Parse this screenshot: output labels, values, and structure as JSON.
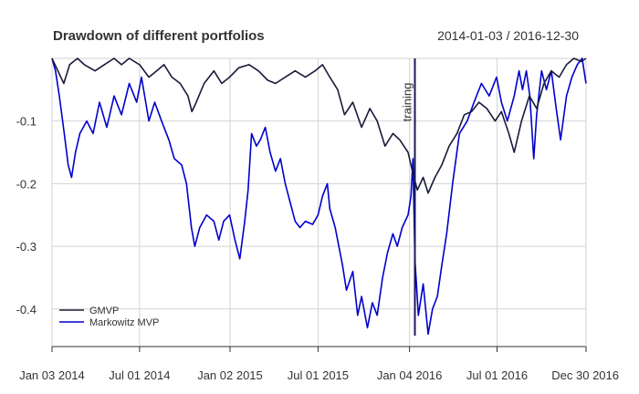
{
  "chart_data": {
    "type": "line",
    "title": "Drawdown of different portfolios",
    "date_range": "2014-01-03 / 2016-12-30",
    "xlabel": "",
    "ylabel": "",
    "x_ticks": [
      "Jan 03 2014",
      "Jul 01 2014",
      "Jan 02 2015",
      "Jul 01 2015",
      "Jan 04 2016",
      "Jul 01 2016",
      "Dec 30 2016"
    ],
    "y_ticks": [
      "-0.1",
      "-0.2",
      "-0.3",
      "-0.4"
    ],
    "y_tick_values": [
      -0.1,
      -0.2,
      -0.3,
      -0.4
    ],
    "xlim": [
      "2014-01-03",
      "2016-12-30"
    ],
    "ylim": [
      -0.46,
      0.0
    ],
    "grid": true,
    "legend": "bottom-left",
    "event": {
      "label": "training",
      "date": "2016-01-15"
    },
    "series": [
      {
        "name": "GMVP",
        "color": "#1a1a3a",
        "points": [
          [
            "2014-01-03",
            0.0
          ],
          [
            "2014-01-15",
            -0.02
          ],
          [
            "2014-01-27",
            -0.04
          ],
          [
            "2014-02-08",
            -0.01
          ],
          [
            "2014-02-24",
            0.0
          ],
          [
            "2014-03-10",
            -0.01
          ],
          [
            "2014-04-01",
            -0.02
          ],
          [
            "2014-04-20",
            -0.01
          ],
          [
            "2014-05-10",
            0.0
          ],
          [
            "2014-05-25",
            -0.01
          ],
          [
            "2014-06-10",
            0.0
          ],
          [
            "2014-07-01",
            -0.01
          ],
          [
            "2014-07-20",
            -0.03
          ],
          [
            "2014-08-05",
            -0.02
          ],
          [
            "2014-08-20",
            -0.01
          ],
          [
            "2014-09-05",
            -0.03
          ],
          [
            "2014-09-22",
            -0.04
          ],
          [
            "2014-10-08",
            -0.06
          ],
          [
            "2014-10-16",
            -0.085
          ],
          [
            "2014-10-25",
            -0.07
          ],
          [
            "2014-11-10",
            -0.04
          ],
          [
            "2014-11-30",
            -0.02
          ],
          [
            "2014-12-16",
            -0.04
          ],
          [
            "2015-01-01",
            -0.03
          ],
          [
            "2015-01-20",
            -0.015
          ],
          [
            "2015-02-10",
            -0.01
          ],
          [
            "2015-03-01",
            -0.02
          ],
          [
            "2015-03-20",
            -0.035
          ],
          [
            "2015-04-05",
            -0.04
          ],
          [
            "2015-04-25",
            -0.03
          ],
          [
            "2015-05-15",
            -0.02
          ],
          [
            "2015-06-05",
            -0.03
          ],
          [
            "2015-06-25",
            -0.02
          ],
          [
            "2015-07-10",
            -0.01
          ],
          [
            "2015-07-25",
            -0.03
          ],
          [
            "2015-08-10",
            -0.05
          ],
          [
            "2015-08-24",
            -0.09
          ],
          [
            "2015-09-10",
            -0.07
          ],
          [
            "2015-09-28",
            -0.11
          ],
          [
            "2015-10-15",
            -0.08
          ],
          [
            "2015-10-30",
            -0.1
          ],
          [
            "2015-11-15",
            -0.14
          ],
          [
            "2015-12-01",
            -0.12
          ],
          [
            "2015-12-15",
            -0.13
          ],
          [
            "2016-01-01",
            -0.15
          ],
          [
            "2016-01-10",
            -0.18
          ],
          [
            "2016-01-20",
            -0.21
          ],
          [
            "2016-02-01",
            -0.19
          ],
          [
            "2016-02-11",
            -0.215
          ],
          [
            "2016-02-25",
            -0.19
          ],
          [
            "2016-03-10",
            -0.17
          ],
          [
            "2016-03-25",
            -0.14
          ],
          [
            "2016-04-10",
            -0.12
          ],
          [
            "2016-04-25",
            -0.09
          ],
          [
            "2016-05-10",
            -0.085
          ],
          [
            "2016-05-25",
            -0.07
          ],
          [
            "2016-06-10",
            -0.08
          ],
          [
            "2016-06-27",
            -0.1
          ],
          [
            "2016-07-10",
            -0.085
          ],
          [
            "2016-07-25",
            -0.12
          ],
          [
            "2016-08-05",
            -0.15
          ],
          [
            "2016-08-20",
            -0.1
          ],
          [
            "2016-09-05",
            -0.06
          ],
          [
            "2016-09-20",
            -0.08
          ],
          [
            "2016-10-05",
            -0.04
          ],
          [
            "2016-10-20",
            -0.02
          ],
          [
            "2016-11-05",
            -0.03
          ],
          [
            "2016-11-20",
            -0.01
          ],
          [
            "2016-12-05",
            0.0
          ],
          [
            "2016-12-20",
            -0.005
          ],
          [
            "2016-12-30",
            0.0
          ]
        ]
      },
      {
        "name": "Markowitz MVP",
        "color": "#0000cc",
        "points": [
          [
            "2014-01-03",
            0.0
          ],
          [
            "2014-01-10",
            -0.02
          ],
          [
            "2014-01-18",
            -0.06
          ],
          [
            "2014-01-28",
            -0.12
          ],
          [
            "2014-02-05",
            -0.17
          ],
          [
            "2014-02-12",
            -0.19
          ],
          [
            "2014-02-20",
            -0.15
          ],
          [
            "2014-03-01",
            -0.12
          ],
          [
            "2014-03-15",
            -0.1
          ],
          [
            "2014-03-28",
            -0.12
          ],
          [
            "2014-04-10",
            -0.07
          ],
          [
            "2014-04-25",
            -0.11
          ],
          [
            "2014-05-10",
            -0.06
          ],
          [
            "2014-05-25",
            -0.09
          ],
          [
            "2014-06-10",
            -0.04
          ],
          [
            "2014-06-25",
            -0.07
          ],
          [
            "2014-07-05",
            -0.03
          ],
          [
            "2014-07-20",
            -0.1
          ],
          [
            "2014-08-01",
            -0.07
          ],
          [
            "2014-08-15",
            -0.1
          ],
          [
            "2014-08-30",
            -0.13
          ],
          [
            "2014-09-10",
            -0.16
          ],
          [
            "2014-09-25",
            -0.17
          ],
          [
            "2014-10-05",
            -0.2
          ],
          [
            "2014-10-15",
            -0.27
          ],
          [
            "2014-10-22",
            -0.3
          ],
          [
            "2014-11-01",
            -0.27
          ],
          [
            "2014-11-15",
            -0.25
          ],
          [
            "2014-11-30",
            -0.26
          ],
          [
            "2014-12-10",
            -0.29
          ],
          [
            "2014-12-20",
            -0.26
          ],
          [
            "2015-01-01",
            -0.25
          ],
          [
            "2015-01-12",
            -0.29
          ],
          [
            "2015-01-22",
            -0.32
          ],
          [
            "2015-02-01",
            -0.26
          ],
          [
            "2015-02-08",
            -0.21
          ],
          [
            "2015-02-15",
            -0.12
          ],
          [
            "2015-02-25",
            -0.14
          ],
          [
            "2015-03-05",
            -0.13
          ],
          [
            "2015-03-15",
            -0.11
          ],
          [
            "2015-03-25",
            -0.15
          ],
          [
            "2015-04-05",
            -0.18
          ],
          [
            "2015-04-15",
            -0.16
          ],
          [
            "2015-04-25",
            -0.2
          ],
          [
            "2015-05-05",
            -0.23
          ],
          [
            "2015-05-15",
            -0.26
          ],
          [
            "2015-05-25",
            -0.27
          ],
          [
            "2015-06-05",
            -0.26
          ],
          [
            "2015-06-20",
            -0.265
          ],
          [
            "2015-07-01",
            -0.25
          ],
          [
            "2015-07-10",
            -0.22
          ],
          [
            "2015-07-20",
            -0.2
          ],
          [
            "2015-07-25",
            -0.24
          ],
          [
            "2015-08-05",
            -0.27
          ],
          [
            "2015-08-20",
            -0.33
          ],
          [
            "2015-08-28",
            -0.37
          ],
          [
            "2015-09-10",
            -0.34
          ],
          [
            "2015-09-20",
            -0.41
          ],
          [
            "2015-09-28",
            -0.38
          ],
          [
            "2015-10-10",
            -0.43
          ],
          [
            "2015-10-20",
            -0.39
          ],
          [
            "2015-10-30",
            -0.41
          ],
          [
            "2015-11-10",
            -0.35
          ],
          [
            "2015-11-20",
            -0.31
          ],
          [
            "2015-12-01",
            -0.28
          ],
          [
            "2015-12-10",
            -0.3
          ],
          [
            "2015-12-20",
            -0.27
          ],
          [
            "2016-01-01",
            -0.25
          ],
          [
            "2016-01-07",
            -0.22
          ],
          [
            "2016-01-11",
            -0.16
          ],
          [
            "2016-01-15",
            -0.32
          ],
          [
            "2016-01-22",
            -0.41
          ],
          [
            "2016-02-01",
            -0.36
          ],
          [
            "2016-02-11",
            -0.44
          ],
          [
            "2016-02-20",
            -0.4
          ],
          [
            "2016-03-01",
            -0.38
          ],
          [
            "2016-03-10",
            -0.33
          ],
          [
            "2016-03-20",
            -0.28
          ],
          [
            "2016-04-01",
            -0.2
          ],
          [
            "2016-04-15",
            -0.12
          ],
          [
            "2016-05-01",
            -0.1
          ],
          [
            "2016-05-15",
            -0.07
          ],
          [
            "2016-05-30",
            -0.04
          ],
          [
            "2016-06-15",
            -0.06
          ],
          [
            "2016-06-30",
            -0.03
          ],
          [
            "2016-07-10",
            -0.07
          ],
          [
            "2016-07-22",
            -0.1
          ],
          [
            "2016-08-05",
            -0.06
          ],
          [
            "2016-08-15",
            -0.02
          ],
          [
            "2016-08-22",
            -0.05
          ],
          [
            "2016-08-30",
            -0.02
          ],
          [
            "2016-09-06",
            -0.06
          ],
          [
            "2016-09-14",
            -0.16
          ],
          [
            "2016-09-20",
            -0.09
          ],
          [
            "2016-09-30",
            -0.02
          ],
          [
            "2016-10-10",
            -0.05
          ],
          [
            "2016-10-20",
            -0.02
          ],
          [
            "2016-10-30",
            -0.08
          ],
          [
            "2016-11-08",
            -0.13
          ],
          [
            "2016-11-20",
            -0.06
          ],
          [
            "2016-12-01",
            -0.03
          ],
          [
            "2016-12-12",
            -0.01
          ],
          [
            "2016-12-22",
            0.0
          ],
          [
            "2016-12-30",
            -0.04
          ]
        ]
      }
    ]
  }
}
